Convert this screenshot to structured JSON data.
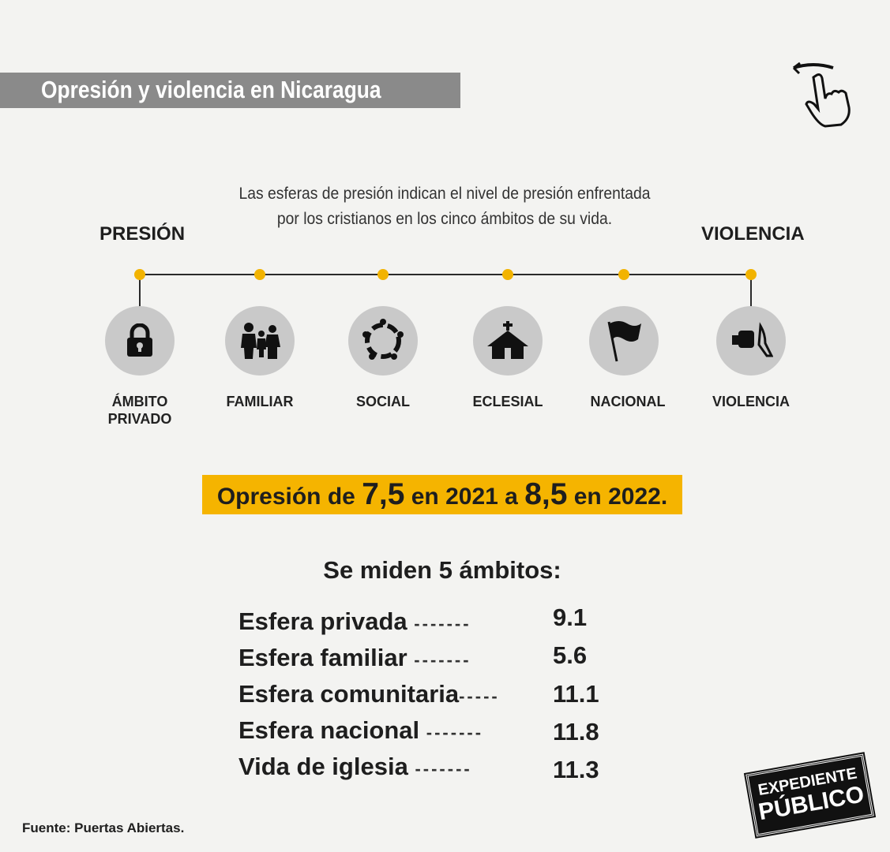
{
  "header": {
    "title": "Opresión y violencia en Nicaragua"
  },
  "intro": {
    "line1": "Las esferas de presión indican el nivel de presión enfrentada",
    "line2": "por los cristianos en los cinco ámbitos de su vida."
  },
  "scale": {
    "left_label": "PRESIÓN",
    "right_label": "VIOLENCIA"
  },
  "spheres": [
    {
      "label": "ÁMBITO PRIVADO",
      "icon": "lock-icon"
    },
    {
      "label": "FAMILIAR",
      "icon": "family-icon"
    },
    {
      "label": "SOCIAL",
      "icon": "community-icon"
    },
    {
      "label": "ECLESIAL",
      "icon": "church-icon"
    },
    {
      "label": "NACIONAL",
      "icon": "flag-icon"
    },
    {
      "label": "VIOLENCIA",
      "icon": "fist-hand-icon"
    }
  ],
  "highlight": {
    "p1": "Opresión de ",
    "v1": "7,5",
    "p2": " en 2021 a ",
    "v2": "8,5",
    "p3": " en 2022."
  },
  "measures": {
    "title": "Se miden 5 ámbitos:",
    "rows": [
      {
        "label": "Esfera privada",
        "dashes": "-------",
        "value": "9.1"
      },
      {
        "label": "Esfera familiar",
        "dashes": "-------",
        "value": "5.6"
      },
      {
        "label": "Esfera comunitaria",
        "dashes": "-----",
        "value": "11.1"
      },
      {
        "label": "Esfera nacional",
        "dashes": "-------",
        "value": "11.8"
      },
      {
        "label": "Vida de iglesia",
        "dashes": "-------",
        "value": "11.3"
      }
    ]
  },
  "source": "Fuente: Puertas Abiertas.",
  "logo": {
    "line1": "EXPEDIENTE",
    "line2": "PÚBLICO"
  },
  "colors": {
    "accent": "#f5b400",
    "title_bar": "#8a8a8a",
    "circle": "#c9c9c9"
  }
}
